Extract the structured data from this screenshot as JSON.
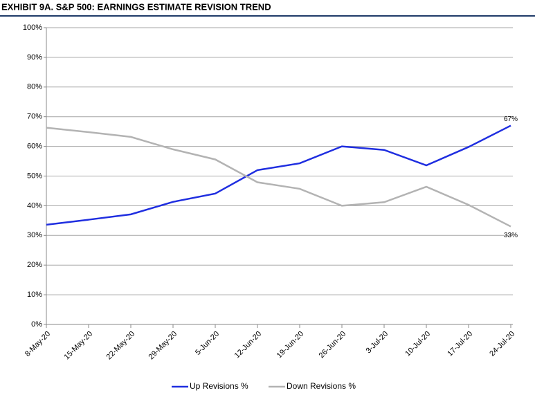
{
  "chart_data": {
    "type": "line",
    "title": "EXHIBIT 9A.  S&P 500: EARNINGS ESTIMATE REVISION TREND",
    "categories": [
      "8-May-20",
      "15-May-20",
      "22-May-20",
      "29-May-20",
      "5-Jun-20",
      "12-Jun-20",
      "19-Jun-20",
      "26-Jun-20",
      "3-Jul-20",
      "10-Jul-20",
      "17-Jul-20",
      "24-Jul-20"
    ],
    "series": [
      {
        "name": "Up Revisions %",
        "color": "#1f2ee0",
        "values": [
          33.6,
          35.3,
          37.1,
          41.3,
          44.1,
          52,
          54.3,
          60,
          58.8,
          53.6,
          59.8,
          67
        ],
        "value_labels": [
          null,
          null,
          null,
          null,
          null,
          null,
          null,
          null,
          null,
          null,
          null,
          "67%"
        ]
      },
      {
        "name": "Down Revisions %",
        "color": "#b3b3b3",
        "values": [
          66.3,
          64.8,
          63.2,
          59,
          55.6,
          47.9,
          45.7,
          40,
          41.2,
          46.4,
          40.3,
          33
        ],
        "value_labels": [
          null,
          null,
          null,
          null,
          null,
          null,
          null,
          null,
          null,
          null,
          null,
          "33%"
        ]
      }
    ],
    "ylim": [
      0,
      100
    ],
    "yticks": [
      {
        "value": 0,
        "label": "0%"
      },
      {
        "value": 10,
        "label": "10%"
      },
      {
        "value": 20,
        "label": "20%"
      },
      {
        "value": 30,
        "label": "30%"
      },
      {
        "value": 40,
        "label": "40%"
      },
      {
        "value": 50,
        "label": "50%"
      },
      {
        "value": 60,
        "label": "60%"
      },
      {
        "value": 70,
        "label": "70%"
      },
      {
        "value": 80,
        "label": "80%"
      },
      {
        "value": 90,
        "label": "90%"
      },
      {
        "value": 100,
        "label": "100%"
      }
    ],
    "grid": true,
    "legend": "bottom"
  }
}
